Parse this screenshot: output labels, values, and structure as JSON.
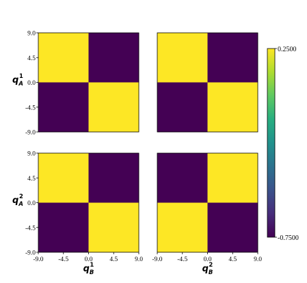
{
  "chart_data": {
    "type": "heatmap",
    "colormap": "viridis",
    "x_ticks": [
      "-9.0",
      "-4.5",
      "0.0",
      "4.5",
      "9.0"
    ],
    "y_ticks": [
      "9.0",
      "4.5",
      "0.0",
      "-4.5",
      "-9.0"
    ],
    "xlim": [
      -9,
      9
    ],
    "ylim": [
      -9,
      9
    ],
    "colorbar": {
      "min": -0.75,
      "max": 0.25,
      "min_label": "-0.7500",
      "max_label": "0.2500"
    },
    "row_labels": [
      {
        "base": "q",
        "sub": "A",
        "sup": "1"
      },
      {
        "base": "q",
        "sub": "A",
        "sup": "2"
      }
    ],
    "col_labels": [
      {
        "base": "q",
        "sub": "B",
        "sup": "1"
      },
      {
        "base": "q",
        "sub": "B",
        "sup": "2"
      }
    ],
    "panels": [
      {
        "row": 0,
        "col": 0,
        "quadrants": {
          "top_left": 0.25,
          "top_right": -0.75,
          "bottom_left": -0.75,
          "bottom_right": 0.25
        }
      },
      {
        "row": 0,
        "col": 1,
        "quadrants": {
          "top_left": 0.25,
          "top_right": -0.75,
          "bottom_left": -0.75,
          "bottom_right": 0.25
        }
      },
      {
        "row": 1,
        "col": 0,
        "quadrants": {
          "top_left": 0.25,
          "top_right": -0.75,
          "bottom_left": -0.75,
          "bottom_right": 0.25
        }
      },
      {
        "row": 1,
        "col": 1,
        "quadrants": {
          "top_left": -0.75,
          "top_right": 0.25,
          "bottom_left": 0.25,
          "bottom_right": -0.75
        }
      }
    ]
  }
}
